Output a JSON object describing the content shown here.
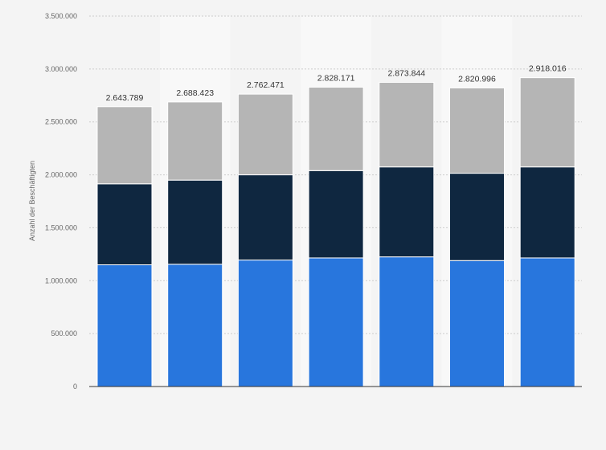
{
  "chart_data": {
    "type": "bar",
    "stacked": true,
    "ylabel": "Anzahl der Beschäftigten",
    "ylim": [
      0,
      3500000
    ],
    "yticks": [
      0,
      500000,
      1000000,
      1500000,
      2000000,
      2500000,
      3000000,
      3500000
    ],
    "ytick_labels": [
      "0",
      "500.000",
      "1.000.000",
      "1.500.000",
      "2.000.000",
      "2.500.000",
      "3.000.000",
      "3.500.000"
    ],
    "grid": true,
    "categories": [
      "",
      "",
      "",
      "",
      "",
      "",
      ""
    ],
    "series": [
      {
        "color": "#2876dd",
        "values": [
          1150000,
          1155000,
          1195000,
          1215000,
          1225000,
          1190000,
          1215000
        ]
      },
      {
        "color": "#0f2740",
        "values": [
          765000,
          795000,
          805000,
          825000,
          850000,
          825000,
          860000
        ]
      },
      {
        "color": "#b5b5b5",
        "values": [
          728789,
          738423,
          762471,
          788171,
          798844,
          805996,
          843016
        ]
      }
    ],
    "totals": [
      2643789,
      2688423,
      2762471,
      2828171,
      2873844,
      2820996,
      2918016
    ],
    "total_labels": [
      "2.643.789",
      "2.688.423",
      "2.762.471",
      "2.828.171",
      "2.873.844",
      "2.820.996",
      "2.918.016"
    ]
  }
}
